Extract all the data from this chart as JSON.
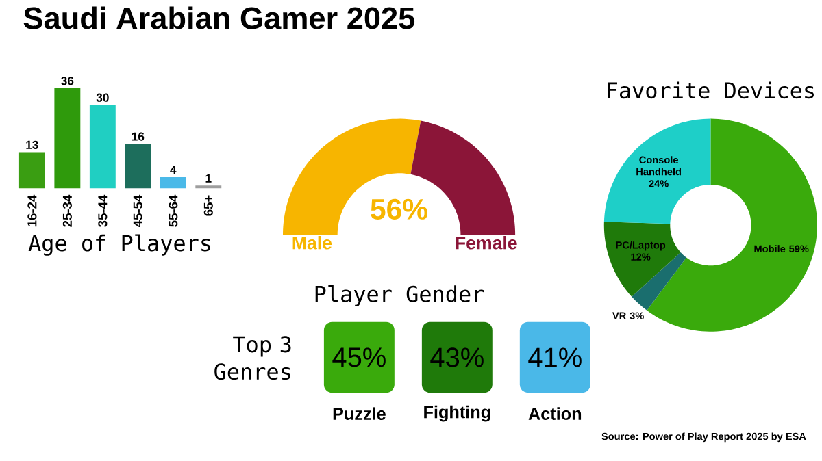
{
  "chart_data": [
    {
      "type": "bar",
      "title": "Saudi Arabian Gamer 2025",
      "xlabel": "Age of Players",
      "categories": [
        "16-24",
        "25-34",
        "35-44",
        "45-54",
        "55-64",
        "65+"
      ],
      "values": [
        13,
        36,
        30,
        16,
        4,
        1
      ],
      "colors": [
        "#3a9e12",
        "#2f9a0c",
        "#20cfc2",
        "#1d6e5c",
        "#4ab9e8",
        "#9e9e9e"
      ],
      "data_labels": true
    },
    {
      "type": "donut",
      "xlabel": "Player Gender",
      "categories": [
        "Male",
        "Female"
      ],
      "values": [
        56,
        44
      ],
      "colors": [
        "#f7b500",
        "#8b1538"
      ],
      "value_labels": [
        "56%",
        null
      ]
    },
    {
      "type": "donut",
      "title": "Favorite Devices",
      "categories": [
        "Mobile",
        "VR",
        "PC/Laptop",
        "Console Handheld"
      ],
      "values": [
        59,
        3,
        12,
        24
      ],
      "colors": [
        "#3aaa0c",
        "#1a6e6e",
        "#1f7a0a",
        "#1ecfc8"
      ],
      "value_labels": [
        "59%",
        "3%",
        "12%",
        "24%"
      ]
    },
    {
      "type": "other",
      "title": "Top 3 Genres",
      "categories": [
        "Puzzle",
        "Fighting",
        "Action"
      ],
      "value_labels": [
        "45%",
        "43%",
        "41%"
      ],
      "colors": [
        "#3aaa0c",
        "#1f7a0a",
        "#4ab8e8"
      ],
      "annotations": [
        "Source: Power of Play Report 2025 by ESA"
      ]
    }
  ]
}
